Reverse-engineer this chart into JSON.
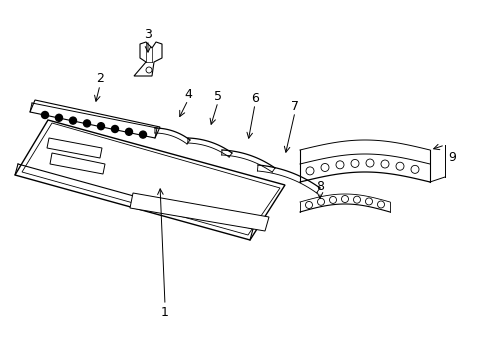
{
  "background_color": "#ffffff",
  "line_color": "#000000",
  "fig_width": 4.89,
  "fig_height": 3.6,
  "dpi": 100,
  "font_size": 9
}
